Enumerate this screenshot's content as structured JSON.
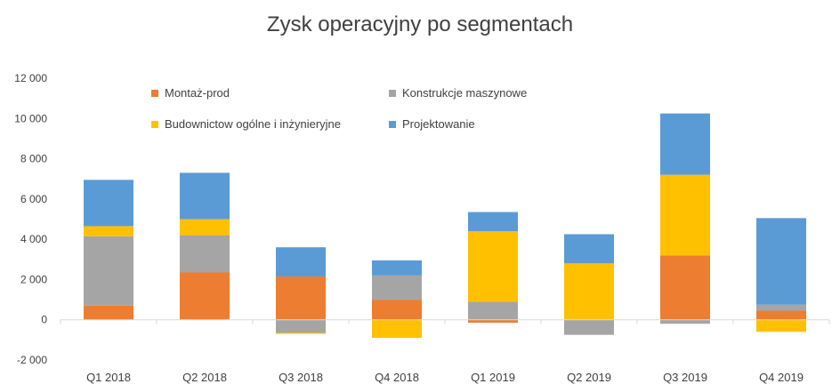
{
  "chart_data": {
    "type": "bar",
    "stacked": true,
    "title": "Zysk operacyjny po segmentach",
    "categories": [
      "Q1 2018",
      "Q2 2018",
      "Q3 2018",
      "Q4 2018",
      "Q1 2019",
      "Q2 2019",
      "Q3 2019",
      "Q4 2019"
    ],
    "series": [
      {
        "name": "Montaż-prod",
        "color": "#ED7D31",
        "values": [
          700,
          2350,
          2150,
          1000,
          -150,
          0,
          3200,
          450
        ]
      },
      {
        "name": "Konstrukcje maszynowe",
        "color": "#A5A5A5",
        "values": [
          3450,
          1850,
          -650,
          1200,
          900,
          -750,
          -200,
          300
        ]
      },
      {
        "name": "Budownictow ogólne i inżynieryjne",
        "color": "#FFC000",
        "values": [
          500,
          800,
          -50,
          -900,
          3500,
          2800,
          4000,
          -600
        ]
      },
      {
        "name": "Projektowanie",
        "color": "#5B9BD5",
        "values": [
          2300,
          2300,
          1450,
          750,
          950,
          1450,
          3050,
          4300
        ]
      }
    ],
    "yticks": [
      "12 000",
      "10 000",
      "8 000",
      "6 000",
      "4 000",
      "2 000",
      "0",
      "-2 000"
    ],
    "ylim": [
      -2000,
      12000
    ],
    "legend_position": "top-left, inside plot",
    "grid": false
  }
}
